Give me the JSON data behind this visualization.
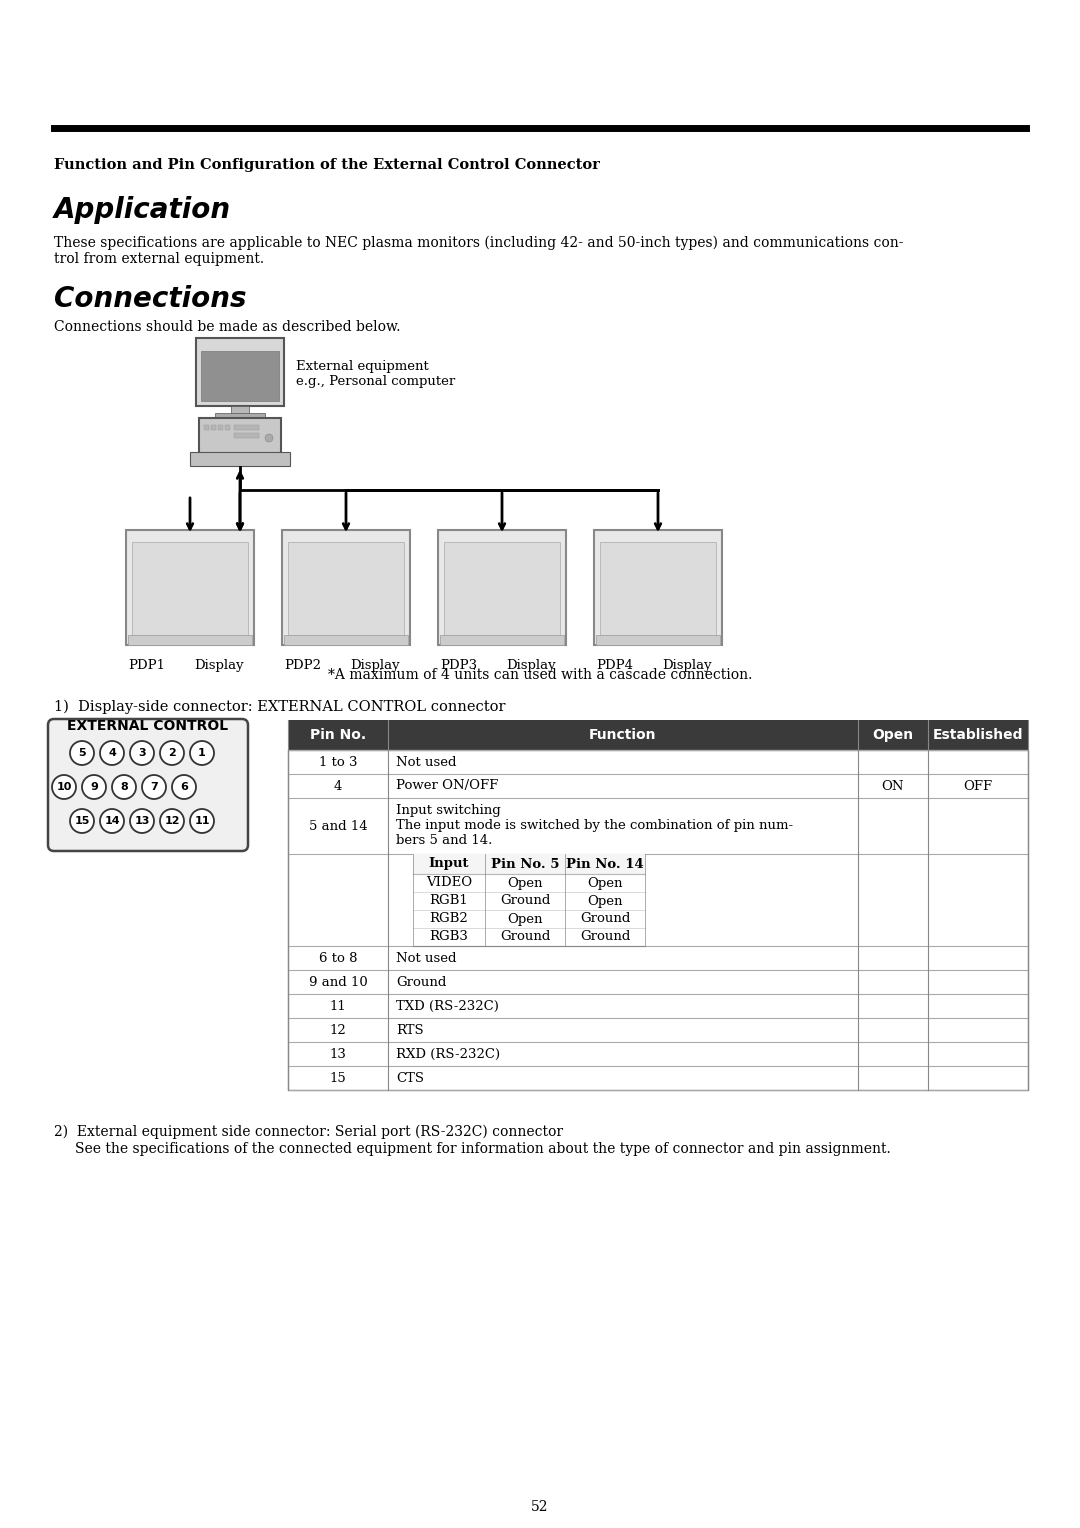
{
  "bg_color": "#ffffff",
  "page_number": "52",
  "section_header": "Function and Pin Configuration of the External Control Connector",
  "application_title": "Application",
  "application_body_l1": "These specifications are applicable to NEC plasma monitors (including 42- and 50-inch types) and communications con-",
  "application_body_l2": "trol from external equipment.",
  "connections_title": "Connections",
  "connections_body": "Connections should be made as described below.",
  "ext_equip_label1": "External equipment",
  "ext_equip_label2": "e.g., Personal computer",
  "cascade_note": "*A maximum of 4 units can used with a cascade connection.",
  "display_connector_label": "1)  Display-side connector: EXTERNAL CONTROL connector",
  "external_control_label": "EXTERNAL CONTROL",
  "table_header_color": "#3c3c3c",
  "table_header_text_color": "#ffffff",
  "table_col_headers": [
    "Pin No.",
    "Function",
    "Open",
    "Established"
  ],
  "sub_table_headers": [
    "Input",
    "Pin No. 5",
    "Pin No. 14"
  ],
  "sub_table_rows": [
    [
      "VIDEO",
      "Open",
      "Open"
    ],
    [
      "RGB1",
      "Ground",
      "Open"
    ],
    [
      "RGB2",
      "Open",
      "Ground"
    ],
    [
      "RGB3",
      "Ground",
      "Ground"
    ]
  ],
  "footnote2_l1": "2)  External equipment side connector: Serial port (RS-232C) connector",
  "footnote2_l2": "See the specifications of the connected equipment for information about the type of connector and pin assignment."
}
